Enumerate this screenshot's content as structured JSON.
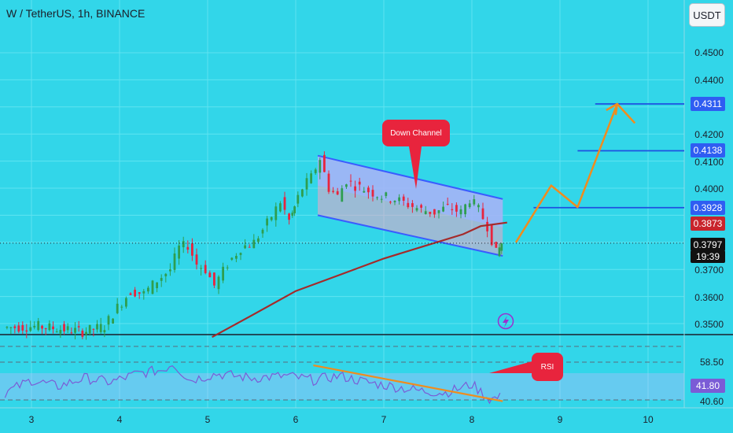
{
  "header": {
    "title": "W / TetherUS, 1h, BINANCE",
    "currency_label": "USDT"
  },
  "price_axis": {
    "ticks": [
      "0.4500",
      "0.4400",
      "0.4200",
      "0.4100",
      "0.4000",
      "0.3700",
      "0.3600",
      "0.3500"
    ]
  },
  "price_tags": {
    "target_3": "0.4311",
    "target_2": "0.4138",
    "target_1": "0.3928",
    "ma_value": "0.3873",
    "last_price": "0.3797",
    "countdown": "19:39"
  },
  "rsi_axis": {
    "upper": "58.50",
    "current": "41.80",
    "lower": "40.60"
  },
  "time_axis": {
    "ticks": [
      "3",
      "4",
      "5",
      "6",
      "7",
      "8",
      "9",
      "10"
    ]
  },
  "annotations": {
    "channel_label": "Down Channel",
    "rsi_label": "RSI"
  },
  "colors": {
    "background": "#32d6e9",
    "candle_up": "#2e9e4f",
    "candle_down": "#e8243d",
    "moving_average": "#a52a2a",
    "channel_line": "#3a5cff",
    "projection": "#f08c1e",
    "target_line": "#1f4fe0",
    "rsi_line": "#7b5cd6"
  },
  "chart_data": {
    "type": "candlestick",
    "symbol": "W / TetherUS",
    "timeframe": "1h",
    "exchange": "BINANCE",
    "x_ticks": [
      "3",
      "4",
      "5",
      "6",
      "7",
      "8",
      "9",
      "10"
    ],
    "ylim": [
      0.345,
      0.459
    ],
    "close_path": [
      [
        2.7,
        0.3485
      ],
      [
        3.1,
        0.349
      ],
      [
        3.35,
        0.348
      ],
      [
        3.6,
        0.347
      ],
      [
        3.85,
        0.349
      ],
      [
        4.0,
        0.356
      ],
      [
        4.15,
        0.362
      ],
      [
        4.3,
        0.361
      ],
      [
        4.45,
        0.366
      ],
      [
        4.6,
        0.37
      ],
      [
        4.7,
        0.378
      ],
      [
        4.8,
        0.379
      ],
      [
        4.9,
        0.372
      ],
      [
        5.0,
        0.37
      ],
      [
        5.1,
        0.364
      ],
      [
        5.25,
        0.372
      ],
      [
        5.4,
        0.378
      ],
      [
        5.55,
        0.38
      ],
      [
        5.7,
        0.387
      ],
      [
        5.85,
        0.395
      ],
      [
        5.95,
        0.388
      ],
      [
        6.0,
        0.393
      ],
      [
        6.1,
        0.4
      ],
      [
        6.2,
        0.404
      ],
      [
        6.3,
        0.411
      ],
      [
        6.4,
        0.4
      ],
      [
        6.5,
        0.397
      ],
      [
        6.6,
        0.403
      ],
      [
        6.7,
        0.401
      ],
      [
        6.85,
        0.399
      ],
      [
        7.0,
        0.397
      ],
      [
        7.15,
        0.396
      ],
      [
        7.3,
        0.394
      ],
      [
        7.45,
        0.392
      ],
      [
        7.6,
        0.391
      ],
      [
        7.75,
        0.393
      ],
      [
        7.9,
        0.391
      ],
      [
        8.0,
        0.396
      ],
      [
        8.1,
        0.392
      ],
      [
        8.2,
        0.386
      ],
      [
        8.3,
        0.376
      ],
      [
        8.35,
        0.3797
      ]
    ],
    "moving_average_path": [
      [
        5.05,
        0.345
      ],
      [
        5.5,
        0.353
      ],
      [
        6.0,
        0.362
      ],
      [
        6.5,
        0.368
      ],
      [
        7.0,
        0.374
      ],
      [
        7.5,
        0.379
      ],
      [
        7.9,
        0.383
      ],
      [
        8.1,
        0.386
      ],
      [
        8.4,
        0.3873
      ]
    ],
    "down_channel": {
      "upper": [
        [
          6.25,
          0.412
        ],
        [
          8.35,
          0.396
        ]
      ],
      "lower": [
        [
          6.25,
          0.39
        ],
        [
          8.35,
          0.375
        ]
      ]
    },
    "projection_path": [
      [
        8.5,
        0.38
      ],
      [
        8.9,
        0.401
      ],
      [
        9.2,
        0.393
      ],
      [
        9.65,
        0.4311
      ],
      [
        9.85,
        0.424
      ]
    ],
    "targets": [
      0.4311,
      0.4138,
      0.3928
    ],
    "last_price": 0.3797,
    "ma_value": 0.3873,
    "rsi": {
      "levels": [
        58.5,
        41.8,
        40.6
      ],
      "path": [
        [
          2.7,
          44
        ],
        [
          3.0,
          50
        ],
        [
          3.3,
          47
        ],
        [
          3.6,
          51
        ],
        [
          3.9,
          49
        ],
        [
          4.2,
          53
        ],
        [
          4.5,
          55
        ],
        [
          4.6,
          58
        ],
        [
          4.8,
          50
        ],
        [
          5.1,
          53
        ],
        [
          5.5,
          51
        ],
        [
          5.9,
          52
        ],
        [
          6.2,
          50
        ],
        [
          6.5,
          52
        ],
        [
          6.8,
          49
        ],
        [
          7.1,
          47
        ],
        [
          7.4,
          45
        ],
        [
          7.7,
          44
        ],
        [
          8.0,
          48
        ],
        [
          8.2,
          41
        ],
        [
          8.35,
          42
        ]
      ],
      "divergence_line": [
        [
          6.2,
          57
        ],
        [
          8.35,
          40
        ]
      ]
    }
  }
}
